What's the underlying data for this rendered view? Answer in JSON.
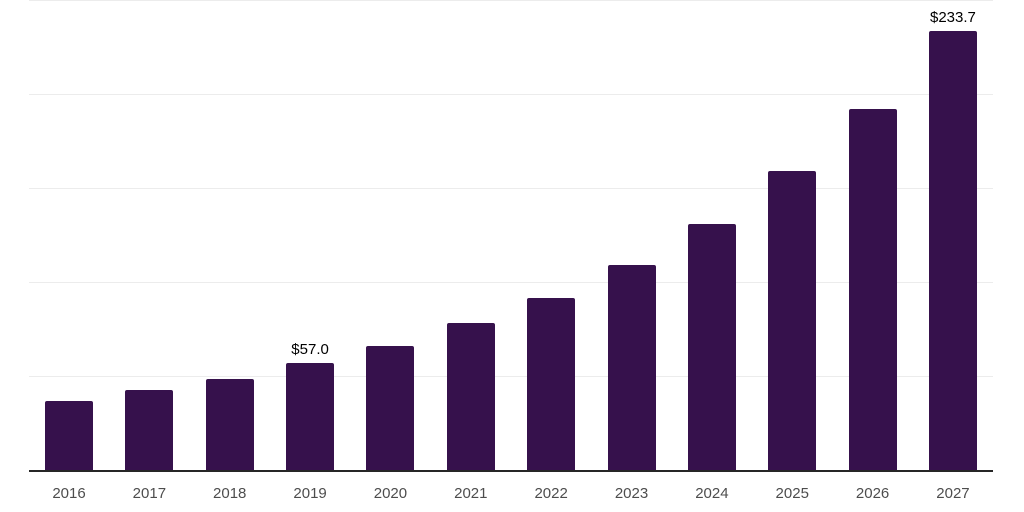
{
  "chart_data": {
    "type": "bar",
    "title": "",
    "xlabel": "",
    "ylabel": "",
    "categories": [
      "2016",
      "2017",
      "2018",
      "2019",
      "2020",
      "2021",
      "2022",
      "2023",
      "2024",
      "2025",
      "2026",
      "2027"
    ],
    "values": [
      36.8,
      42.6,
      48.5,
      57.0,
      66.1,
      78.4,
      91.7,
      109.3,
      131.1,
      158.8,
      191.9,
      233.7
    ],
    "data_labels": {
      "2019": "$57.0",
      "2027": "$233.7"
    },
    "ylim": [
      0,
      250
    ],
    "gridline_values": [
      50,
      100,
      150,
      200,
      250
    ],
    "grid": true,
    "legend": false,
    "y_axis_ticks_visible": false,
    "colors": {
      "bar": "#36114c",
      "axis_line": "#262626",
      "gridline": "#ececec",
      "tick_label": "#4d4d4d",
      "data_label": "#000000",
      "background": "#ffffff"
    }
  }
}
